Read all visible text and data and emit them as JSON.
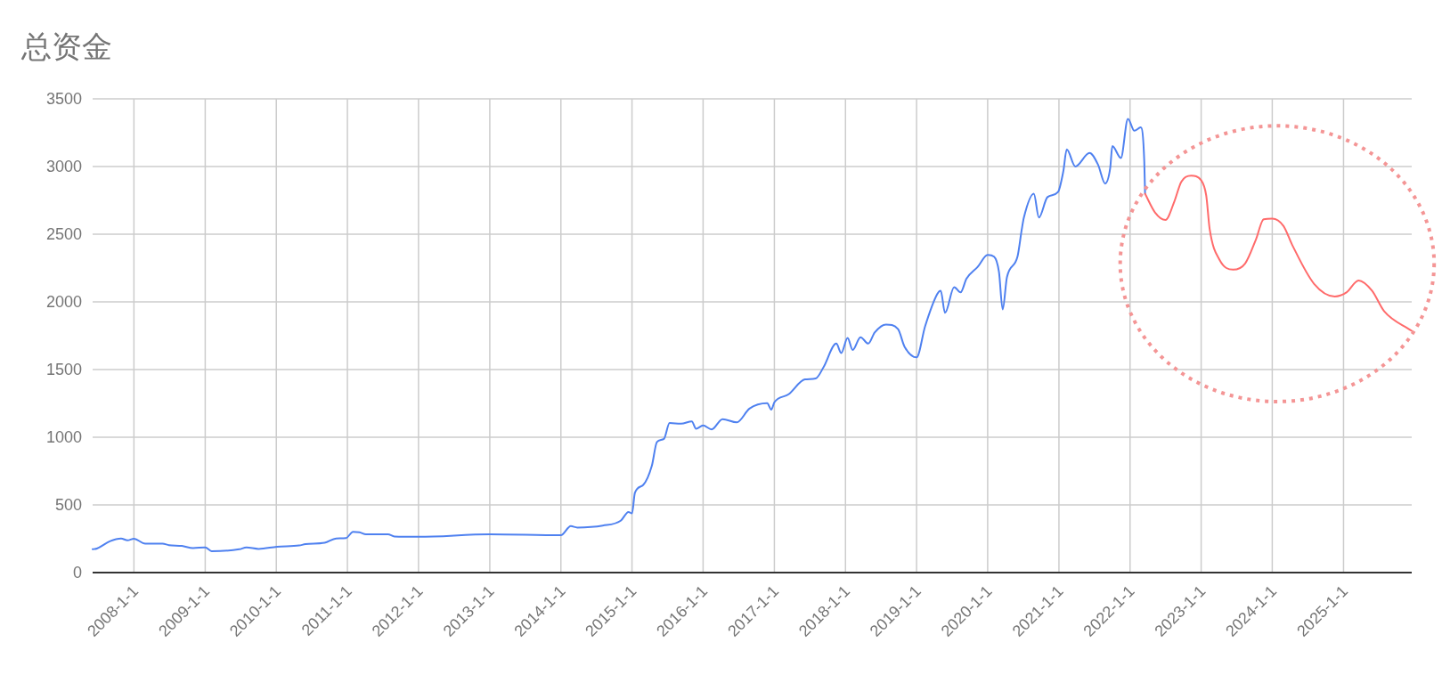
{
  "chart_data": {
    "type": "line",
    "title": "总资金",
    "xlim": [
      "2007-06-03",
      "2025-12-17"
    ],
    "xticks": [
      {
        "value": "2008-01-01",
        "label": "2008-1-1"
      },
      {
        "value": "2009-01-01",
        "label": "2009-1-1"
      },
      {
        "value": "2010-01-01",
        "label": "2010-1-1"
      },
      {
        "value": "2011-01-01",
        "label": "2011-1-1"
      },
      {
        "value": "2012-01-01",
        "label": "2012-1-1"
      },
      {
        "value": "2013-01-01",
        "label": "2013-1-1"
      },
      {
        "value": "2014-01-01",
        "label": "2014-1-1"
      },
      {
        "value": "2015-01-01",
        "label": "2015-1-1"
      },
      {
        "value": "2016-01-01",
        "label": "2016-1-1"
      },
      {
        "value": "2017-01-01",
        "label": "2017-1-1"
      },
      {
        "value": "2018-01-01",
        "label": "2018-1-1"
      },
      {
        "value": "2019-01-01",
        "label": "2019-1-1"
      },
      {
        "value": "2020-01-01",
        "label": "2020-1-1"
      },
      {
        "value": "2021-01-01",
        "label": "2021-1-1"
      },
      {
        "value": "2022-01-01",
        "label": "2022-1-1"
      },
      {
        "value": "2023-01-01",
        "label": "2023-1-1"
      },
      {
        "value": "2024-01-01",
        "label": "2024-1-1"
      },
      {
        "value": "2025-01-01",
        "label": "2025-1-1"
      }
    ],
    "ylim": [
      0,
      3500
    ],
    "yticks": [
      0,
      500,
      1000,
      1500,
      2000,
      2500,
      3000,
      3500
    ],
    "grid": true,
    "series": [
      {
        "color": "#4f81f0",
        "x": [
          "2007-06-03",
          "2007-06-25",
          "2007-08-30",
          "2007-10-27",
          "2007-11-29",
          "2008-01-01",
          "2008-02-28",
          "2008-05-27",
          "2008-06-29",
          "2008-09-03",
          "2008-10-31",
          "2009-01-01",
          "2009-02-03",
          "2009-06-25",
          "2009-08-01",
          "2009-10-02",
          "2010-01-05",
          "2010-04-28",
          "2010-05-31",
          "2010-09-06",
          "2010-11-04",
          "2010-12-25",
          "2011-01-30",
          "2011-03-04",
          "2011-04-06",
          "2011-07-28",
          "2011-08-30",
          "2012-01-01",
          "2013-01-01",
          "2014-01-01",
          "2014-02-21",
          "2014-03-26",
          "2014-08-04",
          "2014-11-04",
          "2014-12-14",
          "2015-01-01",
          "2015-01-16",
          "2015-02-28",
          "2015-04-13",
          "2015-05-09",
          "2015-06-14",
          "2015-07-13",
          "2015-09-10",
          "2015-11-04",
          "2015-11-26",
          "2016-01-01",
          "2016-02-14",
          "2016-04-10",
          "2016-06-22",
          "2016-08-26",
          "2016-11-25",
          "2016-12-16",
          "2017-01-01",
          "2017-03-15",
          "2017-06-07",
          "2017-08-01",
          "2017-09-10",
          "2017-11-15",
          "2017-12-10",
          "2018-01-12",
          "2018-02-07",
          "2018-03-19",
          "2018-04-28",
          "2018-05-31",
          "2018-07-28",
          "2018-09-28",
          "2018-10-31",
          "2019-01-01",
          "2019-02-14",
          "2019-04-17",
          "2019-05-05",
          "2019-05-27",
          "2019-07-13",
          "2019-08-15",
          "2019-09-14",
          "2019-11-11",
          "2020-01-01",
          "2020-02-03",
          "2020-02-28",
          "2020-03-18",
          "2020-04-09",
          "2020-06-02",
          "2020-06-24",
          "2020-07-05",
          "2020-08-25",
          "2020-09-20",
          "2020-11-03",
          "2020-12-27",
          "2021-01-23",
          "2021-02-10",
          "2021-03-26",
          "2021-06-07",
          "2021-07-21",
          "2021-08-26",
          "2021-09-21",
          "2021-10-02",
          "2021-11-15",
          "2021-12-21",
          "2022-01-23",
          "2022-02-25",
          "2022-03-15",
          "2022-03-19"
        ],
        "values": [
          172,
          178,
          231,
          252,
          238,
          250,
          214,
          214,
          203,
          197,
          181,
          186,
          158,
          172,
          186,
          175,
          191,
          200,
          210,
          220,
          252,
          255,
          301,
          298,
          283,
          283,
          267,
          264,
          283,
          276,
          343,
          333,
          347,
          383,
          448,
          437,
          589,
          648,
          789,
          965,
          988,
          1105,
          1100,
          1117,
          1063,
          1087,
          1058,
          1134,
          1110,
          1211,
          1251,
          1204,
          1258,
          1317,
          1427,
          1434,
          1516,
          1692,
          1622,
          1734,
          1645,
          1739,
          1692,
          1774,
          1833,
          1798,
          1670,
          1590,
          1821,
          2058,
          2083,
          1919,
          2108,
          2070,
          2171,
          2259,
          2347,
          2334,
          2221,
          1944,
          2183,
          2334,
          2535,
          2623,
          2799,
          2623,
          2774,
          2811,
          2962,
          3126,
          3000,
          3100,
          3012,
          2874,
          2987,
          3151,
          3063,
          3352,
          3264,
          3289,
          3038,
          2799
        ]
      },
      {
        "color": "#ff6b6b",
        "x": [
          "2022-03-19",
          "2022-05-09",
          "2022-07-02",
          "2022-08-15",
          "2022-09-21",
          "2022-11-11",
          "2023-01-01",
          "2023-01-27",
          "2023-02-14",
          "2023-04-06",
          "2023-06-14",
          "2023-08-15",
          "2023-10-09",
          "2023-11-18",
          "2024-01-01",
          "2024-02-28",
          "2024-04-12",
          "2024-08-03",
          "2024-11-17",
          "2025-01-16",
          "2025-03-19",
          "2025-05-27",
          "2025-07-28",
          "2025-12-17"
        ],
        "values": [
          2799,
          2661,
          2605,
          2736,
          2887,
          2932,
          2899,
          2786,
          2535,
          2309,
          2238,
          2284,
          2460,
          2610,
          2615,
          2560,
          2422,
          2133,
          2040,
          2070,
          2158,
          2083,
          1932,
          1786
        ]
      }
    ]
  }
}
